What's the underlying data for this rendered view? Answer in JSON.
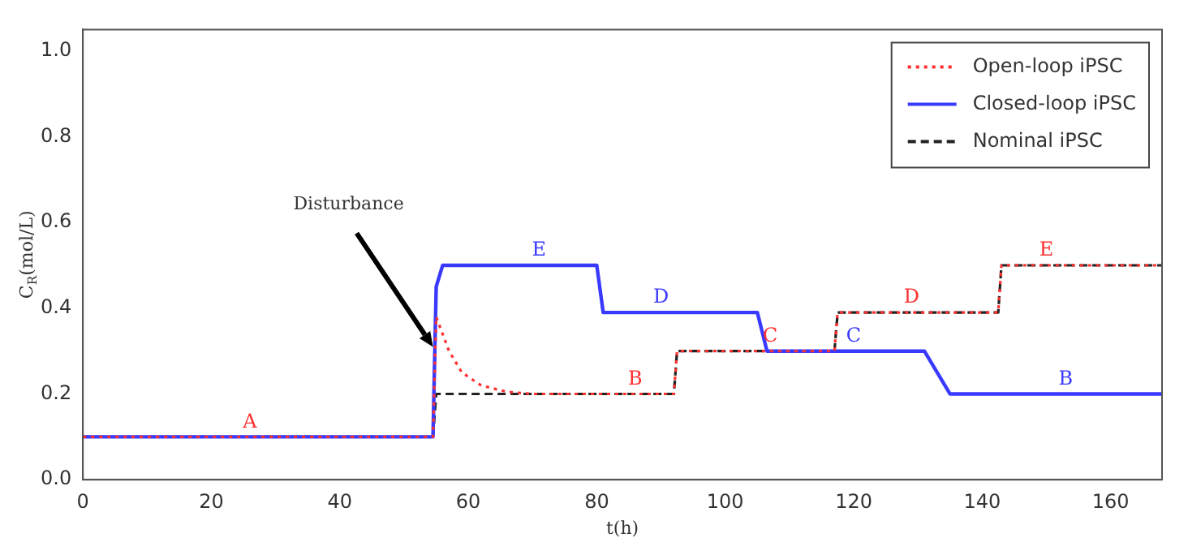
{
  "chart_data": {
    "type": "line",
    "xlabel": "t(h)",
    "ylabel": "C$_{R}$(mol/L)",
    "xlim": [
      0,
      168
    ],
    "xticks": [
      0,
      20,
      40,
      60,
      80,
      100,
      120,
      140,
      160
    ],
    "ylim": [
      0,
      1.05
    ],
    "yticks": [
      {
        "value": 0,
        "label": "0.0"
      },
      {
        "value": 0.2,
        "label": "0.2"
      },
      {
        "value": 0.4,
        "label": "0.4"
      },
      {
        "value": 0.6,
        "label": "0.6"
      },
      {
        "value": 0.8,
        "label": "0.8"
      },
      {
        "value": 1,
        "label": "1.0"
      }
    ],
    "grid": false,
    "legend": "top right",
    "marker": "none",
    "series": [
      {
        "name": "Open-loop iPSC",
        "color": "#ff3030",
        "line_style": "dotted",
        "x": [
          0,
          54.5,
          55,
          57,
          59,
          62,
          66,
          70,
          92,
          92.5,
          117,
          117.5,
          142.5,
          143,
          168
        ],
        "values": [
          0.1,
          0.1,
          0.38,
          0.3,
          0.25,
          0.22,
          0.205,
          0.2,
          0.2,
          0.3,
          0.3,
          0.39,
          0.39,
          0.5,
          0.5
        ]
      },
      {
        "name": "Closed-loop iPSC",
        "color": "#3a3aff",
        "line_style": "solid",
        "x": [
          0,
          54.5,
          55,
          56,
          80,
          81,
          105,
          106.5,
          131,
          133,
          135,
          168
        ],
        "values": [
          0.1,
          0.1,
          0.45,
          0.5,
          0.5,
          0.39,
          0.39,
          0.3,
          0.3,
          0.25,
          0.2,
          0.2
        ]
      },
      {
        "name": "Nominal iPSC",
        "color": "#222222",
        "line_style": "dashed",
        "x": [
          0,
          54.5,
          55,
          92,
          92.5,
          117,
          117.5,
          142.5,
          143,
          168
        ],
        "values": [
          0.1,
          0.1,
          0.2,
          0.2,
          0.3,
          0.3,
          0.39,
          0.39,
          0.5,
          0.5
        ]
      }
    ],
    "annotations": [
      {
        "text": "Disturbance",
        "x": 54.5,
        "y": 0.31
      },
      {
        "text": "A",
        "x": 26,
        "y": 0.1
      },
      {
        "text": "E",
        "x": 71,
        "y": 0.5
      },
      {
        "text": "D",
        "x": 90,
        "y": 0.39
      },
      {
        "text": "B",
        "x": 86,
        "y": 0.2
      },
      {
        "text": "C",
        "x": 107,
        "y": 0.3
      },
      {
        "text": "C",
        "x": 120,
        "y": 0.3
      },
      {
        "text": "D",
        "x": 129,
        "y": 0.39
      },
      {
        "text": "E",
        "x": 150,
        "y": 0.5
      },
      {
        "text": "B",
        "x": 153,
        "y": 0.2
      }
    ]
  }
}
